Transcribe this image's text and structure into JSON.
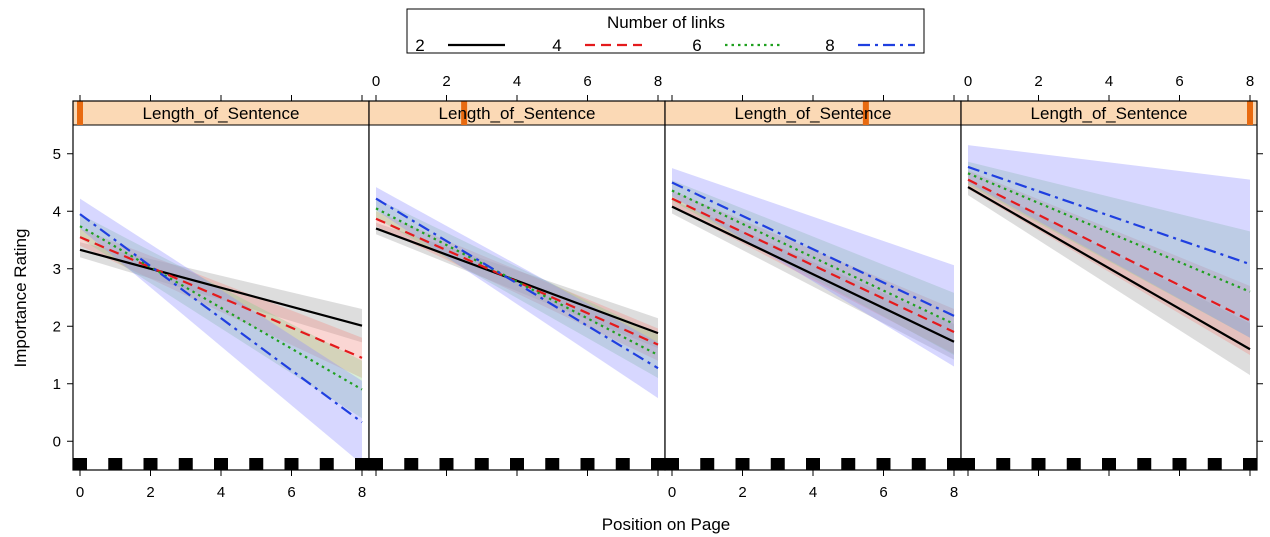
{
  "chart_data": {
    "type": "line",
    "xlabel": "Position on Page",
    "ylabel": "Importance Rating",
    "xlim": [
      0,
      8
    ],
    "ylim": [
      -0.5,
      5.5
    ],
    "x_ticks": [
      "0",
      "2",
      "4",
      "6",
      "8"
    ],
    "y_ticks": [
      "0",
      "1",
      "2",
      "3",
      "4",
      "5"
    ],
    "legend": {
      "title": "Number of links",
      "placement": "top-center",
      "entries": [
        {
          "label": "2",
          "color": "#000000",
          "dash": "solid"
        },
        {
          "label": "4",
          "color": "#e41a1c",
          "dash": "dashed"
        },
        {
          "label": "6",
          "color": "#1fa01f",
          "dash": "dotted"
        },
        {
          "label": "8",
          "color": "#1f3fe0",
          "dash": "dotdash"
        }
      ]
    },
    "panels": [
      {
        "strip": "Length_of_Sentence",
        "strip_marker": 0,
        "series": [
          {
            "name": "2",
            "x": [
              0,
              8
            ],
            "y": [
              3.33,
              2.01
            ],
            "lower": [
              3.2,
              1.72
            ],
            "upper": [
              3.46,
              2.3
            ]
          },
          {
            "name": "4",
            "x": [
              0,
              8
            ],
            "y": [
              3.55,
              1.45
            ],
            "lower": [
              3.4,
              1.1
            ],
            "upper": [
              3.7,
              1.8
            ]
          },
          {
            "name": "6",
            "x": [
              0,
              8
            ],
            "y": [
              3.74,
              0.9
            ],
            "lower": [
              3.53,
              0.4
            ],
            "upper": [
              3.95,
              1.4
            ]
          },
          {
            "name": "8",
            "x": [
              0,
              8
            ],
            "y": [
              3.95,
              0.33
            ],
            "lower": [
              3.7,
              -0.4
            ],
            "upper": [
              4.22,
              1.05
            ]
          }
        ]
      },
      {
        "strip": "Length_of_Sentence",
        "strip_marker": 2.5,
        "series": [
          {
            "name": "2",
            "x": [
              0,
              8
            ],
            "y": [
              3.7,
              1.88
            ],
            "lower": [
              3.6,
              1.62
            ],
            "upper": [
              3.8,
              2.14
            ]
          },
          {
            "name": "4",
            "x": [
              0,
              8
            ],
            "y": [
              3.87,
              1.68
            ],
            "lower": [
              3.74,
              1.4
            ],
            "upper": [
              4.0,
              1.96
            ]
          },
          {
            "name": "6",
            "x": [
              0,
              8
            ],
            "y": [
              4.05,
              1.5
            ],
            "lower": [
              3.88,
              1.1
            ],
            "upper": [
              4.22,
              1.85
            ]
          },
          {
            "name": "8",
            "x": [
              0,
              8
            ],
            "y": [
              4.22,
              1.27
            ],
            "lower": [
              4.02,
              0.75
            ],
            "upper": [
              4.42,
              1.72
            ]
          }
        ]
      },
      {
        "strip": "Length_of_Sentence",
        "strip_marker": 5.5,
        "series": [
          {
            "name": "2",
            "x": [
              0,
              8
            ],
            "y": [
              4.08,
              1.73
            ],
            "lower": [
              3.96,
              1.42
            ],
            "upper": [
              4.2,
              2.04
            ]
          },
          {
            "name": "4",
            "x": [
              0,
              8
            ],
            "y": [
              4.22,
              1.9
            ],
            "lower": [
              4.08,
              1.52
            ],
            "upper": [
              4.36,
              2.3
            ]
          },
          {
            "name": "6",
            "x": [
              0,
              8
            ],
            "y": [
              4.36,
              2.04
            ],
            "lower": [
              4.18,
              1.5
            ],
            "upper": [
              4.54,
              2.58
            ]
          },
          {
            "name": "8",
            "x": [
              0,
              8
            ],
            "y": [
              4.5,
              2.18
            ],
            "lower": [
              4.26,
              1.3
            ],
            "upper": [
              4.75,
              3.06
            ]
          }
        ]
      },
      {
        "strip": "Length_of_Sentence",
        "strip_marker": 8,
        "series": [
          {
            "name": "2",
            "x": [
              0,
              8
            ],
            "y": [
              4.42,
              1.6
            ],
            "lower": [
              4.28,
              1.15
            ],
            "upper": [
              4.56,
              2.05
            ]
          },
          {
            "name": "4",
            "x": [
              0,
              8
            ],
            "y": [
              4.55,
              2.1
            ],
            "lower": [
              4.39,
              1.5
            ],
            "upper": [
              4.71,
              2.7
            ]
          },
          {
            "name": "6",
            "x": [
              0,
              8
            ],
            "y": [
              4.66,
              2.6
            ],
            "lower": [
              4.46,
              1.8
            ],
            "upper": [
              4.86,
              3.65
            ]
          },
          {
            "name": "8",
            "x": [
              0,
              8
            ],
            "y": [
              4.77,
              3.08
            ],
            "lower": [
              4.5,
              1.8
            ],
            "upper": [
              5.15,
              4.55
            ]
          }
        ]
      }
    ],
    "rug_x": [
      0,
      1,
      2,
      3,
      4,
      5,
      6,
      7,
      8
    ],
    "band_colors": {
      "2": "#9e9e9e",
      "4": "#f08a80",
      "6": "#8ccf8c",
      "8": "#8c8cff"
    },
    "strip_color": "#fbd9b5",
    "marker_color": "#e86a10"
  }
}
